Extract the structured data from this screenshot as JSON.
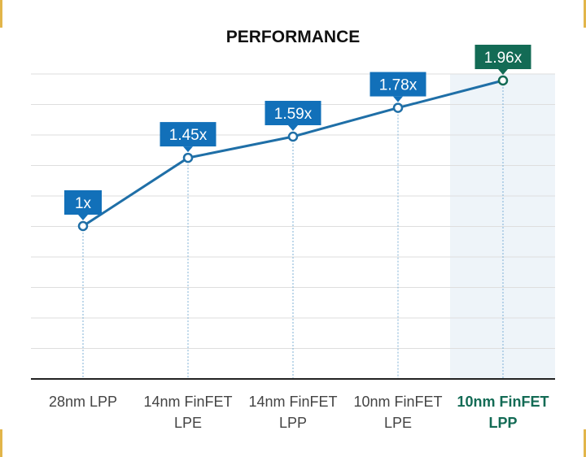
{
  "chart_data": {
    "type": "line",
    "title": "PERFORMANCE",
    "categories": [
      [
        "28nm LPP"
      ],
      [
        "14nm FinFET",
        "LPE"
      ],
      [
        "14nm FinFET",
        "LPP"
      ],
      [
        "10nm FinFET",
        "LPE"
      ],
      [
        "10nm FinFET",
        "LPP"
      ]
    ],
    "values": [
      1,
      1.45,
      1.59,
      1.78,
      1.96
    ],
    "data_labels": [
      "1x",
      "1.45x",
      "1.59x",
      "1.78x",
      "1.96x"
    ],
    "highlighted_index": 4,
    "grid": true,
    "colors": {
      "line": "#1f6fa7",
      "label_bg": "#1270b9",
      "highlight_label_bg": "#136b55",
      "highlight_band": "#eef4f9",
      "highlight_text": "#136b55",
      "grid": "#dedede",
      "axis": "#222222"
    }
  }
}
